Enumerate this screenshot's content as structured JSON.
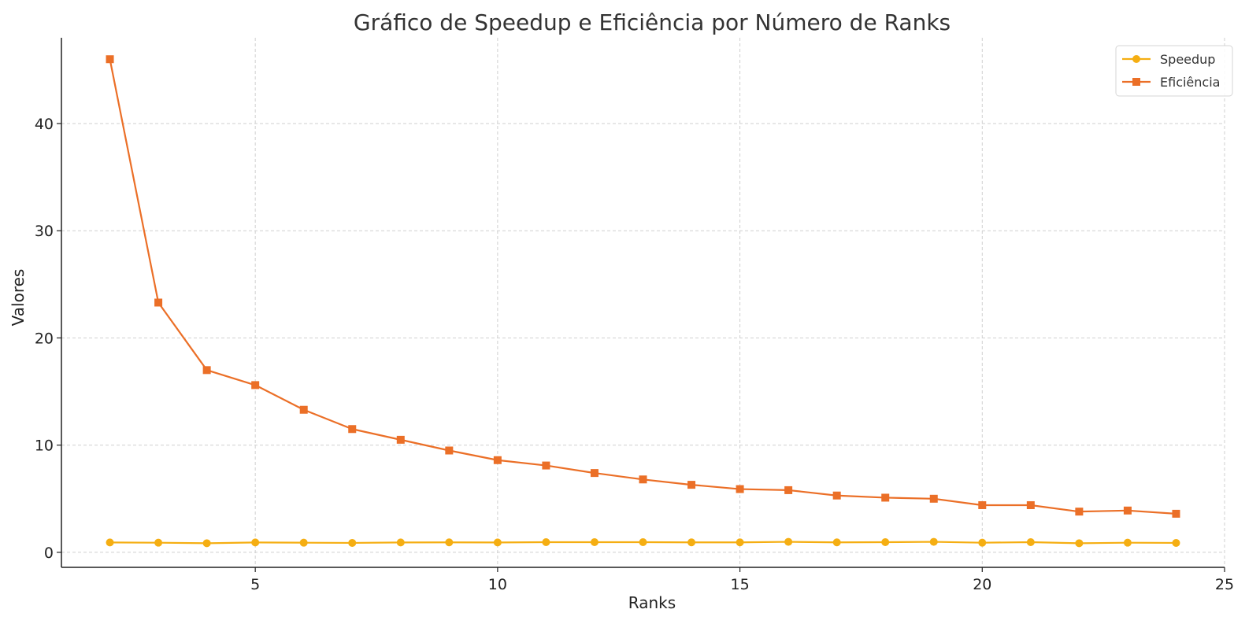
{
  "chart_data": {
    "type": "line",
    "title": "Gráfico de Speedup e Eficiência por Número de Ranks",
    "xlabel": "Ranks",
    "ylabel": "Valores",
    "xlim": [
      1,
      25
    ],
    "ylim": [
      -1.4,
      48
    ],
    "xticks": [
      5,
      10,
      15,
      20,
      25
    ],
    "yticks": [
      0,
      10,
      20,
      30,
      40
    ],
    "grid": true,
    "legend": "top-right",
    "x": [
      2,
      3,
      4,
      5,
      6,
      7,
      8,
      9,
      10,
      11,
      12,
      13,
      14,
      15,
      16,
      17,
      18,
      19,
      20,
      21,
      22,
      23,
      24
    ],
    "series": [
      {
        "name": "Speedup",
        "color": "#f5ae12",
        "marker": "circle",
        "values": [
          0.92,
          0.9,
          0.85,
          0.92,
          0.9,
          0.88,
          0.92,
          0.93,
          0.92,
          0.95,
          0.95,
          0.95,
          0.93,
          0.93,
          0.98,
          0.93,
          0.95,
          0.98,
          0.9,
          0.95,
          0.85,
          0.9,
          0.88
        ]
      },
      {
        "name": "Eficiência",
        "color": "#eb6f27",
        "marker": "square",
        "values": [
          46.0,
          23.3,
          17.0,
          15.6,
          13.3,
          11.5,
          10.5,
          9.5,
          8.6,
          8.1,
          7.4,
          6.8,
          6.3,
          5.9,
          5.8,
          5.3,
          5.1,
          5.0,
          4.4,
          4.4,
          3.8,
          3.9,
          3.6
        ]
      }
    ]
  }
}
